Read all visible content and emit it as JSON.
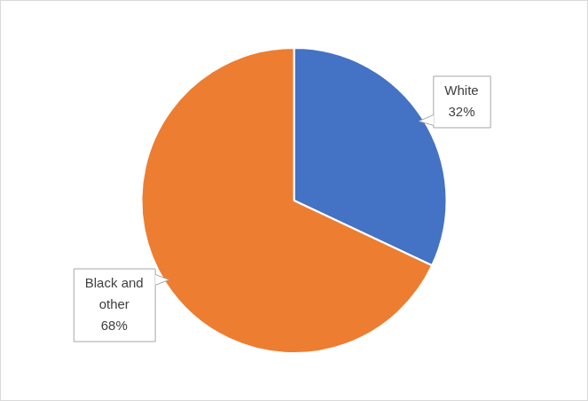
{
  "chart_data": {
    "type": "pie",
    "categories": [
      "White",
      "Black and other"
    ],
    "values": [
      32,
      68
    ],
    "value_labels": [
      "32%",
      "68%"
    ],
    "colors": [
      "#4472c4",
      "#ed7d31"
    ],
    "data_labels": true
  }
}
